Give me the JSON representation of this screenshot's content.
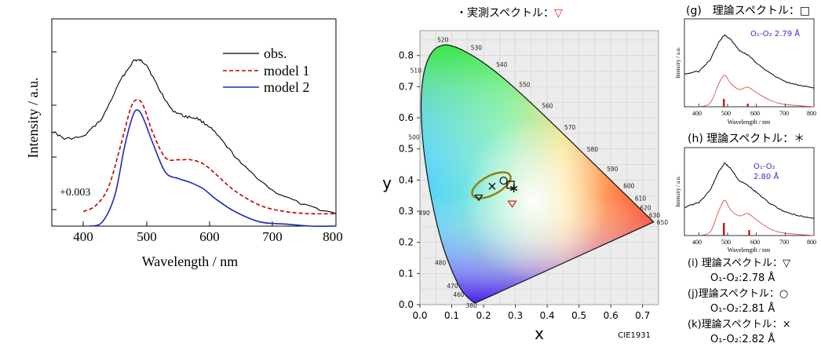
{
  "panel_left": {
    "xlabel": "Wavelength / nm",
    "ylabel": "Intensity / a.u.",
    "offset_label": "+0.003",
    "legend": [
      {
        "label": "obs.",
        "color": "#000000",
        "dash": ""
      },
      {
        "label": "model 1",
        "color": "#c00000",
        "dash": "5,3"
      },
      {
        "label": "model 2",
        "color": "#1f2bb5",
        "dash": ""
      }
    ],
    "xticks": [
      "400",
      "500",
      "600",
      "700",
      "800"
    ]
  },
  "panel_cie": {
    "title_prefix": "・実測スペクトル：",
    "title_symbol": "▽",
    "xlabel": "x",
    "ylabel": "y",
    "footer": "CIE1931",
    "xticks": [
      "0.0",
      "0.1",
      "0.2",
      "0.3",
      "0.4",
      "0.5",
      "0.6",
      "0.7"
    ],
    "yticks": [
      "0.0",
      "0.1",
      "0.2",
      "0.3",
      "0.4",
      "0.5",
      "0.6",
      "0.7",
      "0.8"
    ],
    "locus_labels": [
      "380",
      "460",
      "470",
      "480",
      "490",
      "500",
      "510",
      "520",
      "530",
      "540",
      "550",
      "560",
      "570",
      "580",
      "590",
      "600",
      "610",
      "620",
      "630",
      "650"
    ]
  },
  "panel_g": {
    "title": "(g)　理論スペクトル：□",
    "annotation": "O₁-O₂  2.79 Å",
    "xlabel": "Wavelength / nm",
    "ylabel": "Intensity / a.u.",
    "xticks": [
      "400",
      "500",
      "600",
      "700",
      "800"
    ]
  },
  "panel_h": {
    "title": "(h) 理論スペクトル：＊",
    "annotation_line1": "O₁-O₂",
    "annotation_line2": "2.80 Å",
    "xlabel": "Wavelength / nm",
    "ylabel": "Intensity / a.u.",
    "xticks": [
      "400",
      "500",
      "600",
      "700",
      "800"
    ]
  },
  "notes": {
    "i_title": "(i) 理論スペクトル：▽",
    "i_value": "O₁-O₂:2.78 Å",
    "j_title": "(j)理論スペクトル：○",
    "j_value": "O₁-O₂:2.81 Å",
    "k_title": "(k)理論スペクトル：×",
    "k_value": "O₁-O₂:2.82 Å"
  },
  "chart_data": [
    {
      "type": "line",
      "xlabel": "Wavelength / nm",
      "ylabel": "Intensity / a.u.",
      "xlim": [
        350,
        800
      ],
      "series": [
        {
          "name": "obs.",
          "x": [
            350,
            370,
            400,
            430,
            460,
            480,
            490,
            500,
            520,
            540,
            560,
            580,
            600,
            620,
            650,
            700,
            750,
            800
          ],
          "y": [
            0.46,
            0.42,
            0.43,
            0.52,
            0.71,
            0.8,
            0.8,
            0.78,
            0.66,
            0.56,
            0.53,
            0.52,
            0.48,
            0.41,
            0.3,
            0.17,
            0.1,
            0.06
          ]
        },
        {
          "name": "model 1",
          "x": [
            400,
            420,
            440,
            460,
            475,
            485,
            495,
            510,
            530,
            550,
            570,
            590,
            610,
            640,
            680,
            720,
            760,
            800
          ],
          "y": [
            0.07,
            0.1,
            0.19,
            0.4,
            0.57,
            0.61,
            0.58,
            0.45,
            0.33,
            0.32,
            0.32,
            0.3,
            0.25,
            0.17,
            0.1,
            0.07,
            0.06,
            0.06
          ]
        },
        {
          "name": "model 2",
          "x": [
            410,
            430,
            450,
            465,
            478,
            486,
            495,
            510,
            530,
            550,
            570,
            590,
            610,
            640,
            680,
            720,
            760,
            800
          ],
          "y": [
            0.0,
            0.02,
            0.15,
            0.38,
            0.53,
            0.56,
            0.52,
            0.4,
            0.26,
            0.23,
            0.21,
            0.18,
            0.13,
            0.07,
            0.02,
            0.01,
            0.0,
            0.0
          ]
        }
      ]
    },
    {
      "type": "scatter",
      "title": "・実測スペクトル：▽",
      "xlabel": "x",
      "ylabel": "y",
      "xlim": [
        0,
        0.75
      ],
      "ylim": [
        0,
        0.88
      ],
      "series": [
        {
          "name": "▽",
          "x": [
            0.29
          ],
          "y": [
            0.325
          ]
        },
        {
          "name": "□",
          "x": [
            0.285
          ],
          "y": [
            0.385
          ]
        },
        {
          "name": "＊",
          "x": [
            0.295
          ],
          "y": [
            0.373
          ]
        },
        {
          "name": "▽",
          "x": [
            0.185
          ],
          "y": [
            0.345
          ]
        },
        {
          "name": "○",
          "x": [
            0.263
          ],
          "y": [
            0.398
          ]
        },
        {
          "name": "×",
          "x": [
            0.227
          ],
          "y": [
            0.38
          ]
        }
      ]
    },
    {
      "type": "line",
      "title": "(g)　理論スペクトル：□",
      "xlabel": "Wavelength / nm",
      "ylabel": "Intensity / a.u.",
      "xlim": [
        350,
        800
      ],
      "series": [
        {
          "x": [
            350,
            400,
            440,
            470,
            490,
            510,
            540,
            570,
            600,
            650,
            700,
            750,
            800
          ],
          "y": [
            0.42,
            0.45,
            0.6,
            0.83,
            0.92,
            0.86,
            0.72,
            0.66,
            0.56,
            0.42,
            0.32,
            0.27,
            0.24
          ]
        },
        {
          "x": [
            400,
            440,
            470,
            490,
            510,
            540,
            570,
            600,
            650,
            700,
            800
          ],
          "y": [
            0.0,
            0.05,
            0.3,
            0.4,
            0.3,
            0.22,
            0.25,
            0.18,
            0.08,
            0.03,
            0.0
          ]
        }
      ]
    },
    {
      "type": "line",
      "title": "(h) 理論スペクトル：＊",
      "xlabel": "Wavelength / nm",
      "ylabel": "Intensity / a.u.",
      "xlim": [
        350,
        800
      ],
      "series": [
        {
          "x": [
            350,
            400,
            440,
            470,
            490,
            510,
            540,
            570,
            600,
            650,
            700,
            750,
            800
          ],
          "y": [
            0.36,
            0.42,
            0.58,
            0.82,
            0.92,
            0.86,
            0.7,
            0.64,
            0.55,
            0.4,
            0.3,
            0.25,
            0.22
          ]
        },
        {
          "x": [
            400,
            440,
            470,
            490,
            510,
            540,
            570,
            600,
            650,
            700,
            800
          ],
          "y": [
            0.0,
            0.05,
            0.32,
            0.45,
            0.33,
            0.25,
            0.28,
            0.2,
            0.08,
            0.03,
            0.0
          ]
        }
      ]
    }
  ]
}
